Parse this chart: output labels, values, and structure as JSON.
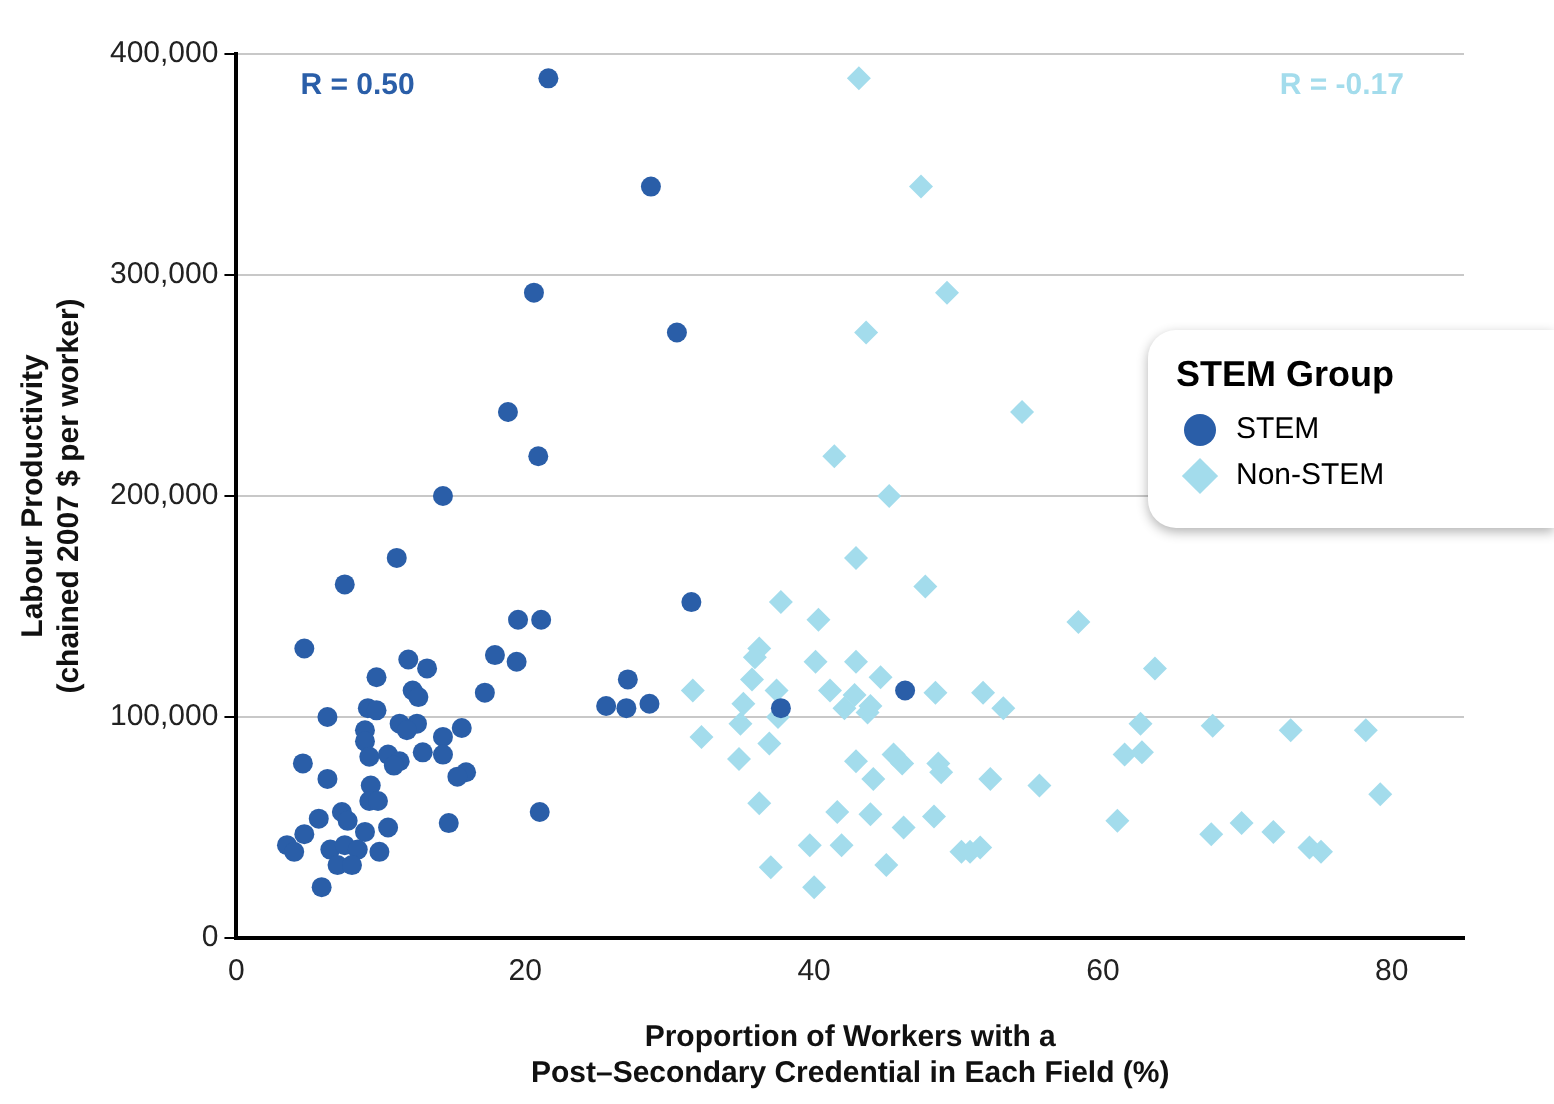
{
  "chart_data": {
    "type": "scatter",
    "xlabel": "Proportion of Workers with a\nPost–Secondary Credential in Each Field (%)",
    "ylabel": "Labour Productivity\n(chained 2007 $ per worker)",
    "legend_title": "STEM Group",
    "annotations": [
      "R = 0.50",
      "R = -0.17"
    ],
    "xlim": [
      0,
      85
    ],
    "xticks": [
      0,
      20,
      40,
      60,
      80
    ],
    "ylim": [
      0,
      400000
    ],
    "yticks": [
      0,
      {
        "value": 100000,
        "label": "100,000"
      },
      {
        "value": 200000,
        "label": "200,000"
      },
      {
        "value": 300000,
        "label": "300,000"
      },
      {
        "value": 400000,
        "label": "400,000"
      }
    ],
    "grid": "y",
    "legend": "right",
    "series": [
      {
        "name": "STEM",
        "color": "#2a5ea8",
        "marker": "circle",
        "x": [
          21.6,
          20.6,
          28.7,
          30.5,
          18.8,
          20.9,
          14.3,
          11.1,
          7.5,
          4.7,
          19.5,
          21.1,
          31.5,
          17.9,
          19.4,
          11.9,
          13.2,
          9.7,
          12.2,
          12.6,
          17.2,
          9.1,
          9.7,
          6.3,
          11.3,
          12.5,
          11.8,
          8.9,
          8.9,
          14.3,
          15.6,
          10.5,
          9.2,
          11.3,
          10.9,
          12.9,
          14.3,
          4.6,
          6.3,
          15.9,
          15.3,
          9.3,
          9.2,
          9.8,
          7.3,
          7.7,
          5.7,
          10.5,
          14.7,
          21.0,
          4.7,
          8.9,
          3.5,
          4.0,
          6.5,
          7.5,
          8.4,
          9.9,
          7.0,
          8.0,
          5.9,
          25.6,
          27.0,
          28.6,
          27.1,
          37.7,
          46.3
        ],
        "values": [
          389000,
          292000,
          340000,
          274000,
          238000,
          218000,
          200000,
          172000,
          160000,
          131000,
          144000,
          144000,
          152000,
          128000,
          125000,
          126000,
          122000,
          118000,
          112000,
          109000,
          111000,
          104000,
          103000,
          100000,
          97000,
          97000,
          94000,
          94000,
          89000,
          91000,
          95000,
          83000,
          82000,
          80000,
          78000,
          84000,
          83000,
          79000,
          72000,
          75000,
          73000,
          69000,
          62000,
          62000,
          57000,
          53000,
          54000,
          50000,
          52000,
          57000,
          47000,
          48000,
          42000,
          39000,
          40000,
          42000,
          40000,
          39000,
          33000,
          33000,
          23000,
          105000,
          104000,
          106000,
          117000,
          104000,
          112000
        ]
      },
      {
        "name": "Non-STEM",
        "color": "#a3dcec",
        "marker": "diamond",
        "x": [
          43.1,
          47.4,
          49.2,
          43.6,
          41.4,
          45.2,
          54.4,
          42.9,
          47.7,
          37.7,
          40.3,
          58.3,
          36.2,
          35.9,
          40.1,
          42.9,
          63.6,
          35.7,
          44.6,
          31.6,
          37.4,
          41.1,
          42.8,
          42.1,
          43.9,
          43.7,
          48.4,
          51.7,
          53.1,
          35.1,
          37.5,
          34.9,
          62.6,
          67.6,
          73.0,
          78.2,
          32.2,
          36.9,
          34.8,
          42.9,
          44.1,
          45.5,
          46.1,
          48.6,
          48.8,
          52.2,
          55.6,
          61.5,
          62.7,
          79.2,
          36.2,
          41.6,
          43.9,
          48.3,
          46.2,
          61.0,
          67.5,
          69.6,
          71.8,
          74.3,
          75.1,
          39.7,
          41.9,
          50.2,
          50.8,
          51.5,
          37.0,
          45.0,
          40.0
        ],
        "values": [
          389000,
          340000,
          292000,
          274000,
          218000,
          200000,
          238000,
          172000,
          159000,
          152000,
          144000,
          143000,
          131000,
          127000,
          125000,
          125000,
          122000,
          117000,
          118000,
          112000,
          112000,
          112000,
          110000,
          104000,
          105000,
          102000,
          111000,
          111000,
          104000,
          106000,
          100000,
          97000,
          97000,
          96000,
          94000,
          94000,
          91000,
          88000,
          81000,
          80000,
          72000,
          83000,
          79000,
          79000,
          75000,
          72000,
          69000,
          83000,
          84000,
          65000,
          61000,
          57000,
          56000,
          55000,
          50000,
          53000,
          47000,
          52000,
          48000,
          41000,
          39000,
          42000,
          42000,
          39000,
          39000,
          41000,
          32000,
          33000,
          23000
        ]
      }
    ]
  }
}
